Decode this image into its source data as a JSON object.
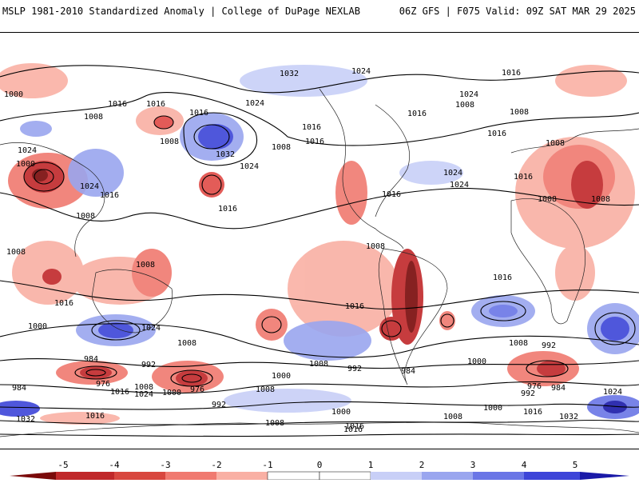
{
  "header": {
    "title_left": "MSLP 1981-2010 Standardized Anomaly | College of DuPage NEXLAB",
    "title_right": "06Z GFS | F075 Valid: 09Z SAT MAR 29 2025"
  },
  "colors": {
    "neg5": "#7a0a0a",
    "neg4": "#c0282a",
    "neg3": "#e04a46",
    "neg2": "#f07a70",
    "neg1": "#f9b0a4",
    "pos1": "#c8cff7",
    "pos2": "#9aa6ef",
    "pos3": "#6a76e6",
    "pos4": "#3d45d8",
    "pos5": "#1a1aa8",
    "contour": "#000000",
    "coast": "#222222"
  },
  "colorbar": {
    "ticks": [
      "-5",
      "-4",
      "-3",
      "-2",
      "-1",
      "0",
      "1",
      "2",
      "3",
      "4",
      "5"
    ]
  },
  "contour_labels": [
    "1000",
    "1008",
    "1016",
    "1024",
    "1032",
    "1024",
    "1016",
    "1016",
    "1024",
    "1008",
    "1016",
    "1024",
    "1032",
    "1016",
    "1008",
    "1008",
    "1016",
    "1024",
    "1016",
    "1024",
    "1016",
    "1008",
    "1016",
    "1024",
    "1008",
    "1016",
    "1008",
    "1016",
    "1008",
    "1008",
    "1016",
    "1008",
    "1024",
    "1000",
    "1016",
    "1008",
    "1016",
    "1016",
    "1024",
    "1008",
    "1008",
    "992",
    "984",
    "992",
    "1000",
    "1008",
    "1000",
    "992",
    "1008",
    "1000",
    "984",
    "976",
    "1016",
    "1008",
    "1024",
    "1000",
    "976",
    "992",
    "1016",
    "1008",
    "1000",
    "1016",
    "984",
    "976",
    "984",
    "992",
    "1008",
    "1016",
    "1000",
    "1032",
    "1016",
    "1032",
    "1024",
    "1008"
  ]
}
